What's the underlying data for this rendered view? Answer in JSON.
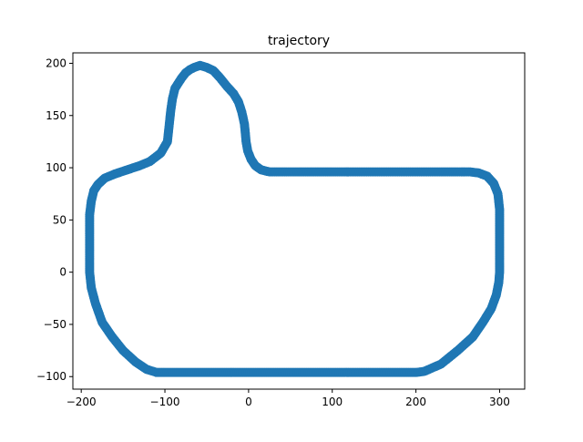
{
  "chart_data": {
    "type": "scatter",
    "title": "trajectory",
    "xlabel": "",
    "ylabel": "",
    "xlim": [
      -210,
      330
    ],
    "ylim": [
      -112,
      210
    ],
    "x_ticks": [
      -200,
      -100,
      0,
      100,
      200,
      300
    ],
    "y_ticks": [
      -100,
      -50,
      0,
      50,
      100,
      150,
      200
    ],
    "x_tick_labels": [
      "−200",
      "−100",
      "0",
      "100",
      "200",
      "300"
    ],
    "y_tick_labels": [
      "−100",
      "−50",
      "0",
      "50",
      "100",
      "150",
      "200"
    ],
    "grid": false,
    "marker_color": "#1f77b4",
    "series": [
      {
        "x": [
          -190,
          -190,
          -190,
          -190,
          -188,
          -185,
          -180,
          -172,
          -160,
          -145,
          -130,
          -118,
          -105,
          -97,
          -95,
          -93,
          -91,
          -88,
          -84,
          -80,
          -75,
          -70,
          -65,
          -58,
          -50,
          -42,
          -34,
          -26,
          -18,
          -12,
          -8,
          -5,
          -4,
          -3,
          -1,
          3,
          8,
          15,
          25,
          35,
          45,
          60,
          80,
          100,
          150,
          200,
          230,
          250,
          265,
          275,
          285,
          293,
          298,
          300,
          300,
          300,
          300,
          299,
          296,
          290,
          280,
          268,
          250,
          230,
          210,
          200,
          150,
          100,
          50,
          0,
          -50,
          -100,
          -110,
          -122,
          -135,
          -150,
          -163,
          -175,
          -183,
          -188,
          -190
        ],
        "y": [
          0,
          20,
          40,
          55,
          68,
          78,
          84,
          90,
          94,
          98,
          102,
          106,
          114,
          125,
          140,
          155,
          166,
          176,
          181,
          186,
          191,
          194,
          196,
          198,
          196,
          193,
          186,
          178,
          171,
          163,
          153,
          142,
          134,
          125,
          116,
          108,
          102,
          98,
          96,
          96,
          96,
          96,
          96,
          96,
          96,
          96,
          96,
          96,
          96,
          95,
          92,
          85,
          75,
          60,
          40,
          20,
          0,
          -10,
          -22,
          -35,
          -48,
          -62,
          -75,
          -88,
          -95,
          -96,
          -96,
          -96,
          -96,
          -96,
          -96,
          -96,
          -96,
          -93,
          -86,
          -75,
          -62,
          -48,
          -30,
          -15,
          0
        ]
      }
    ]
  }
}
